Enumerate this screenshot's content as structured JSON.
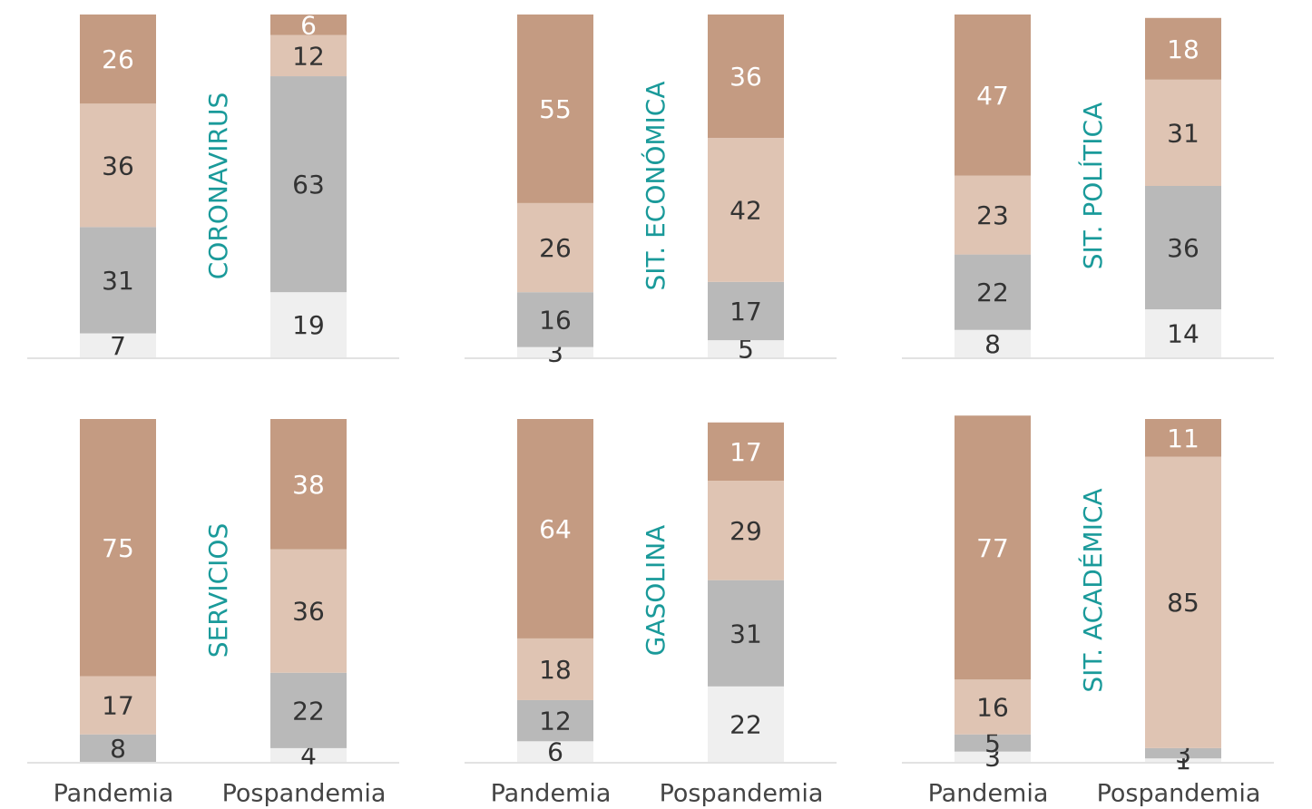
{
  "chart_data": [
    {
      "type": "bar",
      "stacked": true,
      "title": "CORONAVIRUS",
      "ylim": [
        0,
        100
      ],
      "series": [
        {
          "color": "#efefef",
          "values": [
            7,
            19
          ]
        },
        {
          "color": "#b9b9b9",
          "values": [
            31,
            63
          ]
        },
        {
          "color": "#dfc4b3",
          "values": [
            36,
            12
          ]
        },
        {
          "color": "#c49b82",
          "values": [
            26,
            6
          ]
        }
      ]
    },
    {
      "type": "bar",
      "stacked": true,
      "title": "SIT. ECONÓMICA",
      "ylim": [
        0,
        100
      ],
      "series": [
        {
          "color": "#efefef",
          "values": [
            3,
            5
          ]
        },
        {
          "color": "#b9b9b9",
          "values": [
            16,
            17
          ]
        },
        {
          "color": "#dfc4b3",
          "values": [
            26,
            42
          ]
        },
        {
          "color": "#c49b82",
          "values": [
            55,
            36
          ]
        }
      ]
    },
    {
      "type": "bar",
      "stacked": true,
      "title": "SIT. POLÍTICA",
      "ylim": [
        0,
        100
      ],
      "series": [
        {
          "color": "#efefef",
          "values": [
            8,
            14
          ]
        },
        {
          "color": "#b9b9b9",
          "values": [
            22,
            36
          ]
        },
        {
          "color": "#dfc4b3",
          "values": [
            23,
            31
          ]
        },
        {
          "color": "#c49b82",
          "values": [
            47,
            18
          ]
        }
      ]
    },
    {
      "type": "bar",
      "stacked": true,
      "title": "SERVICIOS",
      "ylim": [
        0,
        100
      ],
      "categories": [
        "Pandemia",
        "Pospandemia"
      ],
      "series": [
        {
          "color": "#efefef",
          "values": [
            null,
            4
          ]
        },
        {
          "color": "#b9b9b9",
          "values": [
            8,
            22
          ]
        },
        {
          "color": "#dfc4b3",
          "values": [
            17,
            36
          ]
        },
        {
          "color": "#c49b82",
          "values": [
            75,
            38
          ]
        }
      ]
    },
    {
      "type": "bar",
      "stacked": true,
      "title": "GASOLINA",
      "ylim": [
        0,
        100
      ],
      "categories": [
        "Pandemia",
        "Pospandemia"
      ],
      "series": [
        {
          "color": "#efefef",
          "values": [
            6,
            22
          ]
        },
        {
          "color": "#b9b9b9",
          "values": [
            12,
            31
          ]
        },
        {
          "color": "#dfc4b3",
          "values": [
            18,
            29
          ]
        },
        {
          "color": "#c49b82",
          "values": [
            64,
            17
          ]
        }
      ]
    },
    {
      "type": "bar",
      "stacked": true,
      "title": "SIT. ACADÉMICA",
      "ylim": [
        0,
        100
      ],
      "categories": [
        "Pandemia",
        "Pospandemia"
      ],
      "series": [
        {
          "color": "#efefef",
          "values": [
            3,
            1
          ]
        },
        {
          "color": "#b9b9b9",
          "values": [
            5,
            3
          ]
        },
        {
          "color": "#dfc4b3",
          "values": [
            16,
            85
          ]
        },
        {
          "color": "#c49b82",
          "values": [
            77,
            11
          ]
        }
      ]
    }
  ]
}
